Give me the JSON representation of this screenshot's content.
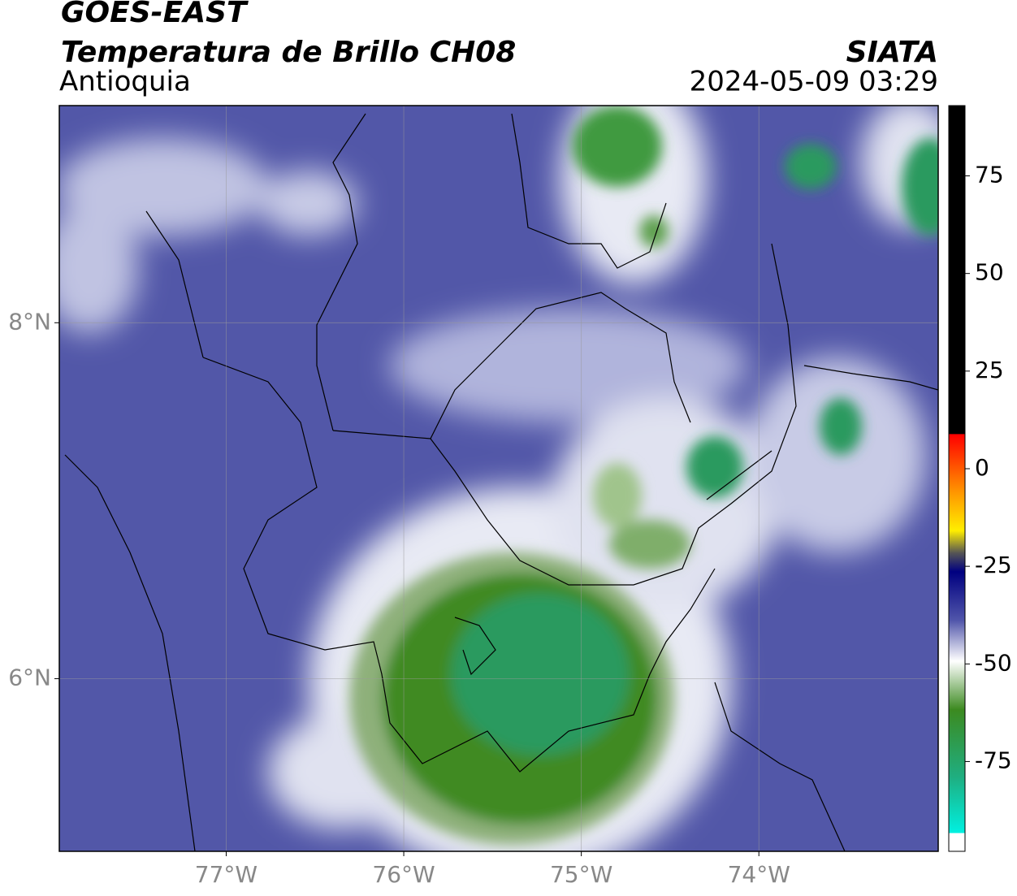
{
  "header": {
    "title": "GOES-EAST",
    "subtitle": "Temperatura de Brillo CH08",
    "region": "Antioquia",
    "source": "SIATA",
    "datetime": "2024-05-09 03:29"
  },
  "map": {
    "lat": {
      "lim": [
        5.03,
        9.22
      ],
      "ticks": [
        {
          "value": 8,
          "label": "8°N"
        },
        {
          "value": 6,
          "label": "6°N"
        }
      ]
    },
    "lon": {
      "lim": [
        -77.94,
        -72.99
      ],
      "ticks": [
        {
          "value": -77,
          "label": "77°W"
        },
        {
          "value": -76,
          "label": "76°W"
        },
        {
          "value": -75,
          "label": "75°W"
        },
        {
          "value": -74,
          "label": "74°W"
        }
      ]
    },
    "grid": true
  },
  "colorbar": {
    "lim": [
      -98,
      93
    ],
    "ticks": [
      75,
      50,
      25,
      0,
      -25,
      -50,
      -75
    ]
  }
}
